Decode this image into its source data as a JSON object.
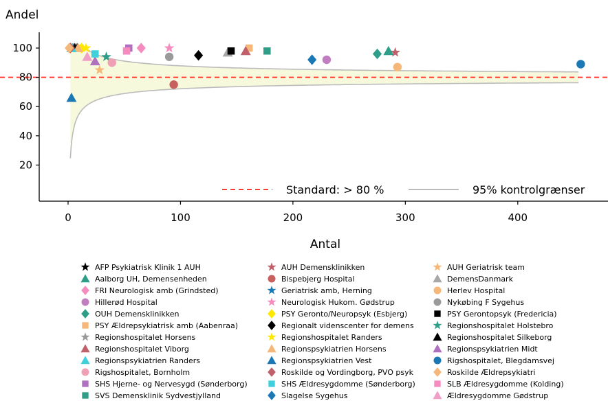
{
  "chart_data": {
    "type": "scatter",
    "ylabel": "Andel",
    "xlabel": "Antal",
    "xlim": [
      -25,
      470
    ],
    "ylim": [
      0,
      112
    ],
    "xticks": [
      0,
      100,
      200,
      300,
      400
    ],
    "yticks": [
      20,
      40,
      60,
      80,
      100
    ],
    "standard": {
      "value": 80,
      "label": "Standard: > 80 %",
      "color": "#ff3b30"
    },
    "control_limits": {
      "label": "95% kontrolgrænser",
      "color": "#bbbbbb",
      "fill": "#f6f9dc",
      "p": 0.8
    },
    "series": [
      {
        "name": "AFP Psykiatrisk Klinik 1 AUH",
        "marker": "star",
        "color": "#000000",
        "x": 8,
        "y": 100
      },
      {
        "name": "AUH Demensklinikken",
        "marker": "star",
        "color": "#c0606a",
        "x": 291,
        "y": 97
      },
      {
        "name": "AUH Geriatrisk team",
        "marker": "star",
        "color": "#f5b878",
        "x": 28,
        "y": 85
      },
      {
        "name": "Aalborg UH, Demensenheden",
        "marker": "triangle",
        "color": "#2e9e88",
        "x": 285,
        "y": 98
      },
      {
        "name": "Bispebjerg Hospital",
        "marker": "circle",
        "color": "#c8605f",
        "x": 94,
        "y": 75
      },
      {
        "name": "DemensDanmark",
        "marker": "triangle",
        "color": "#a8a8a8",
        "x": 142,
        "y": 97
      },
      {
        "name": "FRI Neurologisk amb (Grindsted)",
        "marker": "diamond",
        "color": "#f48cc0",
        "x": 65,
        "y": 100
      },
      {
        "name": "Geriatrisk amb, Herning",
        "marker": "star",
        "color": "#1a78b4",
        "x": 5,
        "y": 100
      },
      {
        "name": "Herlev Hospital",
        "marker": "circle",
        "color": "#f5b878",
        "x": 293,
        "y": 87
      },
      {
        "name": "Hillerød Hospital",
        "marker": "circle",
        "color": "#c07ec0",
        "x": 230,
        "y": 92
      },
      {
        "name": "Neurologisk Hukom. Gødstrup",
        "marker": "star",
        "color": "#f48cc0",
        "x": 90,
        "y": 100
      },
      {
        "name": "Nykøbing F Sygehus",
        "marker": "circle",
        "color": "#9a9a9a",
        "x": 90,
        "y": 94
      },
      {
        "name": "OUH Demensklinikken",
        "marker": "diamond",
        "color": "#2e9e88",
        "x": 275,
        "y": 96
      },
      {
        "name": "PSY Geronto/Neuropsyk  (Esbjerg)",
        "marker": "diamond",
        "color": "#ffe800",
        "x": 12,
        "y": 100
      },
      {
        "name": "PSY Gerontopsyk (Fredericia)",
        "marker": "square",
        "color": "#000000",
        "x": 145,
        "y": 98
      },
      {
        "name": "PSY Ældrepsykiatrisk amb (Aabenraa)",
        "marker": "square",
        "color": "#f5b878",
        "x": 161,
        "y": 100
      },
      {
        "name": "Regionalt videnscenter for demens",
        "marker": "diamond",
        "color": "#000000",
        "x": 116,
        "y": 95
      },
      {
        "name": "Regionshospitalet Holstebro",
        "marker": "star",
        "color": "#2e9e88",
        "x": 34,
        "y": 94
      },
      {
        "name": "Regionshospitalet Horsens",
        "marker": "star",
        "color": "#9a9a9a",
        "x": 4,
        "y": 100
      },
      {
        "name": "Regionshospitalet Randers",
        "marker": "star",
        "color": "#ffe800",
        "x": 16,
        "y": 100
      },
      {
        "name": "Regionshospitalet Silkeborg",
        "marker": "triangle",
        "color": "#000000",
        "x": 6,
        "y": 100
      },
      {
        "name": "Regionshospitalet Viborg",
        "marker": "triangle",
        "color": "#c0606a",
        "x": 158,
        "y": 98
      },
      {
        "name": "Regionspsykiatrien Horsens",
        "marker": "triangle",
        "color": "#f5b878",
        "x": 9,
        "y": 100
      },
      {
        "name": "Regionspsykiatrien Midt",
        "marker": "triangle",
        "color": "#b070c0",
        "x": 24,
        "y": 91
      },
      {
        "name": "Regionspsykiatrien Randers",
        "marker": "triangle",
        "color": "#40d0dc",
        "x": 3,
        "y": 100
      },
      {
        "name": "Regionspsykiatrien Vest",
        "marker": "triangle",
        "color": "#1a78b4",
        "x": 3,
        "y": 66
      },
      {
        "name": "Rigshospitalet, Blegdamsvej",
        "marker": "circle",
        "color": "#1a78b4",
        "x": 456,
        "y": 89
      },
      {
        "name": "Rigshospitalet, Bornholm",
        "marker": "circle",
        "color": "#f0a0b4",
        "x": 39,
        "y": 90
      },
      {
        "name": "Roskilde og Vordingborg, PVO psyk",
        "marker": "diamond",
        "color": "#c0606a",
        "x": 2,
        "y": 100
      },
      {
        "name": "Roskilde Ældrepsykiatri",
        "marker": "diamond",
        "color": "#f5b878",
        "x": 1,
        "y": 100
      },
      {
        "name": "SHS Hjerne- og Nervesygd (Sønderborg)",
        "marker": "square",
        "color": "#b070c0",
        "x": 54,
        "y": 100
      },
      {
        "name": "SHS Ældresygdomme (Sønderborg)",
        "marker": "square",
        "color": "#40d0dc",
        "x": 24,
        "y": 96
      },
      {
        "name": "SLB Ældresygdomme (Kolding)",
        "marker": "square",
        "color": "#f48cc0",
        "x": 52,
        "y": 98
      },
      {
        "name": "SVS Demensklinik Sydvestjylland",
        "marker": "square",
        "color": "#2e9e88",
        "x": 177,
        "y": 98
      },
      {
        "name": "Slagelse Sygehus",
        "marker": "diamond",
        "color": "#1a78b4",
        "x": 217,
        "y": 92
      },
      {
        "name": "Ældresygdomme Gødstrup",
        "marker": "triangle",
        "color": "#f0a0c8",
        "x": 17,
        "y": 94
      }
    ]
  }
}
